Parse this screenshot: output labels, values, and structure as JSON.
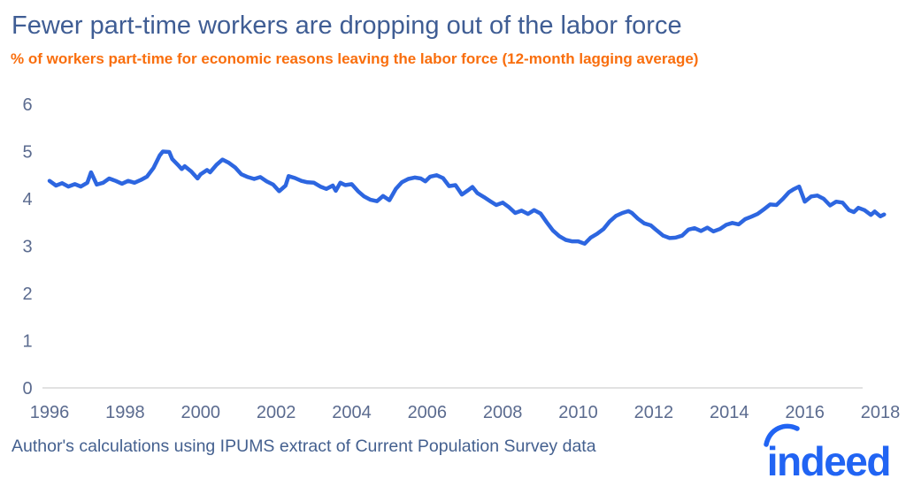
{
  "header": {
    "title": "Fewer part-time workers are dropping out of the labor force",
    "subtitle": "% of workers part-time for economic reasons leaving the labor force (12-month lagging average)"
  },
  "footer": {
    "source_note": "Author's calculations using IPUMS extract of Current Population Survey data",
    "logo_text": "indeed"
  },
  "colors": {
    "title": "#3f5d94",
    "subtitle": "#f96e0d",
    "axis_label": "#5b6b8f",
    "footer": "#44608f",
    "line": "#2d66e0",
    "baseline": "#d9d9d9",
    "logo": "#2164f3",
    "background": "#ffffff"
  },
  "chart_data": {
    "type": "line",
    "title": "Fewer part-time workers are dropping out of the labor force",
    "subtitle": "% of workers part-time for economic reasons leaving the labor force (12-month lagging average)",
    "xlabel": "",
    "ylabel": "",
    "xlim": [
      1996,
      2018
    ],
    "ylim": [
      0,
      6
    ],
    "x_ticks": [
      1996,
      1998,
      2000,
      2002,
      2004,
      2006,
      2008,
      2010,
      2012,
      2014,
      2016,
      2018
    ],
    "y_ticks": [
      0,
      1,
      2,
      3,
      4,
      5,
      6
    ],
    "grid": "baseline-only",
    "legend": "none",
    "series": [
      {
        "name": "Share of part-time-for-economic-reasons workers leaving the labor force (12-month lagging average, %)",
        "points": [
          [
            1996.0,
            4.38
          ],
          [
            1996.17,
            4.28
          ],
          [
            1996.33,
            4.33
          ],
          [
            1996.5,
            4.26
          ],
          [
            1996.67,
            4.31
          ],
          [
            1996.83,
            4.26
          ],
          [
            1997.0,
            4.34
          ],
          [
            1997.1,
            4.56
          ],
          [
            1997.25,
            4.3
          ],
          [
            1997.42,
            4.34
          ],
          [
            1997.58,
            4.43
          ],
          [
            1997.75,
            4.38
          ],
          [
            1997.92,
            4.32
          ],
          [
            1998.08,
            4.38
          ],
          [
            1998.25,
            4.34
          ],
          [
            1998.42,
            4.4
          ],
          [
            1998.58,
            4.47
          ],
          [
            1998.75,
            4.65
          ],
          [
            1998.92,
            4.92
          ],
          [
            1999.0,
            5.0
          ],
          [
            1999.17,
            4.99
          ],
          [
            1999.25,
            4.84
          ],
          [
            1999.42,
            4.7
          ],
          [
            1999.5,
            4.63
          ],
          [
            1999.58,
            4.69
          ],
          [
            1999.75,
            4.58
          ],
          [
            1999.92,
            4.43
          ],
          [
            2000.0,
            4.52
          ],
          [
            2000.17,
            4.61
          ],
          [
            2000.25,
            4.56
          ],
          [
            2000.42,
            4.72
          ],
          [
            2000.58,
            4.83
          ],
          [
            2000.75,
            4.76
          ],
          [
            2000.92,
            4.66
          ],
          [
            2001.08,
            4.52
          ],
          [
            2001.25,
            4.46
          ],
          [
            2001.42,
            4.42
          ],
          [
            2001.58,
            4.46
          ],
          [
            2001.75,
            4.37
          ],
          [
            2001.92,
            4.3
          ],
          [
            2002.08,
            4.16
          ],
          [
            2002.25,
            4.28
          ],
          [
            2002.33,
            4.48
          ],
          [
            2002.5,
            4.44
          ],
          [
            2002.67,
            4.38
          ],
          [
            2002.83,
            4.35
          ],
          [
            2003.0,
            4.34
          ],
          [
            2003.17,
            4.26
          ],
          [
            2003.33,
            4.21
          ],
          [
            2003.5,
            4.28
          ],
          [
            2003.58,
            4.17
          ],
          [
            2003.7,
            4.34
          ],
          [
            2003.83,
            4.29
          ],
          [
            2004.0,
            4.31
          ],
          [
            2004.17,
            4.16
          ],
          [
            2004.33,
            4.05
          ],
          [
            2004.5,
            3.98
          ],
          [
            2004.67,
            3.95
          ],
          [
            2004.83,
            4.06
          ],
          [
            2005.0,
            3.97
          ],
          [
            2005.17,
            4.21
          ],
          [
            2005.33,
            4.35
          ],
          [
            2005.5,
            4.42
          ],
          [
            2005.67,
            4.45
          ],
          [
            2005.83,
            4.43
          ],
          [
            2005.95,
            4.37
          ],
          [
            2006.08,
            4.47
          ],
          [
            2006.25,
            4.5
          ],
          [
            2006.42,
            4.44
          ],
          [
            2006.58,
            4.27
          ],
          [
            2006.75,
            4.29
          ],
          [
            2006.92,
            4.09
          ],
          [
            2007.08,
            4.18
          ],
          [
            2007.2,
            4.25
          ],
          [
            2007.33,
            4.12
          ],
          [
            2007.5,
            4.04
          ],
          [
            2007.67,
            3.95
          ],
          [
            2007.83,
            3.87
          ],
          [
            2008.0,
            3.92
          ],
          [
            2008.17,
            3.82
          ],
          [
            2008.33,
            3.7
          ],
          [
            2008.5,
            3.75
          ],
          [
            2008.67,
            3.68
          ],
          [
            2008.83,
            3.76
          ],
          [
            2009.0,
            3.69
          ],
          [
            2009.17,
            3.5
          ],
          [
            2009.33,
            3.33
          ],
          [
            2009.5,
            3.21
          ],
          [
            2009.67,
            3.13
          ],
          [
            2009.83,
            3.1
          ],
          [
            2010.0,
            3.1
          ],
          [
            2010.17,
            3.05
          ],
          [
            2010.33,
            3.18
          ],
          [
            2010.5,
            3.26
          ],
          [
            2010.67,
            3.36
          ],
          [
            2010.83,
            3.52
          ],
          [
            2011.0,
            3.64
          ],
          [
            2011.17,
            3.7
          ],
          [
            2011.33,
            3.74
          ],
          [
            2011.42,
            3.7
          ],
          [
            2011.58,
            3.58
          ],
          [
            2011.75,
            3.48
          ],
          [
            2011.92,
            3.44
          ],
          [
            2012.08,
            3.33
          ],
          [
            2012.25,
            3.22
          ],
          [
            2012.42,
            3.17
          ],
          [
            2012.58,
            3.18
          ],
          [
            2012.75,
            3.22
          ],
          [
            2012.92,
            3.35
          ],
          [
            2013.08,
            3.38
          ],
          [
            2013.25,
            3.32
          ],
          [
            2013.42,
            3.39
          ],
          [
            2013.58,
            3.31
          ],
          [
            2013.75,
            3.36
          ],
          [
            2013.92,
            3.45
          ],
          [
            2014.08,
            3.49
          ],
          [
            2014.25,
            3.46
          ],
          [
            2014.42,
            3.57
          ],
          [
            2014.58,
            3.62
          ],
          [
            2014.75,
            3.68
          ],
          [
            2014.92,
            3.78
          ],
          [
            2015.08,
            3.88
          ],
          [
            2015.25,
            3.87
          ],
          [
            2015.42,
            4.0
          ],
          [
            2015.58,
            4.14
          ],
          [
            2015.7,
            4.2
          ],
          [
            2015.85,
            4.26
          ],
          [
            2016.0,
            3.94
          ],
          [
            2016.17,
            4.05
          ],
          [
            2016.33,
            4.07
          ],
          [
            2016.5,
            4.0
          ],
          [
            2016.67,
            3.86
          ],
          [
            2016.83,
            3.94
          ],
          [
            2017.0,
            3.92
          ],
          [
            2017.17,
            3.76
          ],
          [
            2017.3,
            3.72
          ],
          [
            2017.42,
            3.81
          ],
          [
            2017.58,
            3.76
          ],
          [
            2017.75,
            3.66
          ],
          [
            2017.85,
            3.73
          ],
          [
            2018.0,
            3.63
          ],
          [
            2018.1,
            3.67
          ]
        ]
      }
    ]
  }
}
